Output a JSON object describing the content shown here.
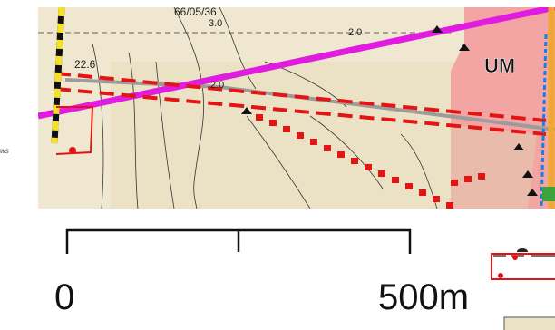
{
  "margin_text": "ws",
  "map": {
    "labels": {
      "parcel_top": "66/05/36",
      "value_top": "3.0",
      "elev_1": "22.6",
      "elev_2": "2.0",
      "elev_3": "2.0",
      "zone": "UM"
    }
  },
  "scale_bar": {
    "start_label": "0",
    "end_label": "500",
    "unit": "m"
  },
  "colors": {
    "terrain": "#efe7cf",
    "zone_fill": "#f3a5a3",
    "road": "#e01ce0",
    "boundary_red": "#e41414",
    "blue_line": "#1a7fe0",
    "orange_strip": "#f0a830"
  }
}
